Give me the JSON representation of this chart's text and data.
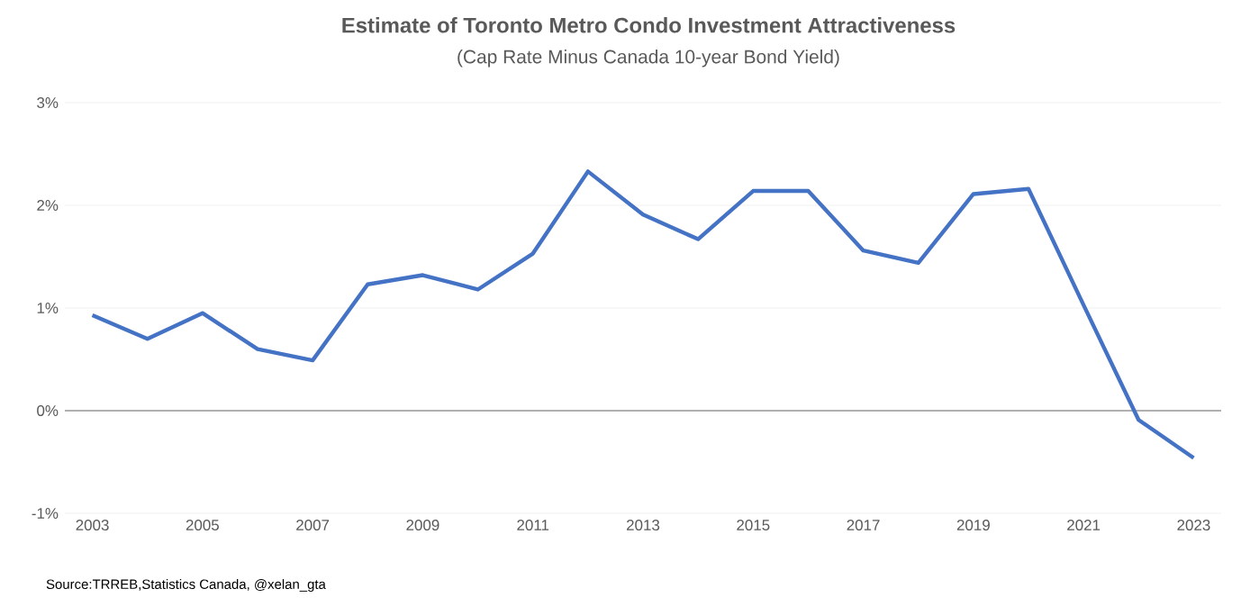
{
  "chart_data": {
    "type": "line",
    "title": "Estimate of Toronto Metro Condo Investment Attractiveness",
    "subtitle": "(Cap Rate Minus Canada 10-year Bond Yield)",
    "x": [
      2003,
      2004,
      2005,
      2006,
      2007,
      2008,
      2009,
      2010,
      2011,
      2012,
      2013,
      2014,
      2015,
      2016,
      2017,
      2018,
      2019,
      2020,
      2021,
      2022,
      2023
    ],
    "series": [
      {
        "color": "#4472c4",
        "values": [
          0.93,
          0.7,
          0.95,
          0.6,
          0.49,
          1.23,
          1.32,
          1.18,
          1.53,
          2.33,
          1.91,
          1.67,
          2.14,
          2.14,
          1.56,
          1.44,
          2.11,
          2.16,
          1.03,
          -0.09,
          -0.46
        ]
      }
    ],
    "xlim": [
      2002.5,
      2023.5
    ],
    "xticks": [
      2003,
      2005,
      2007,
      2009,
      2011,
      2013,
      2015,
      2017,
      2019,
      2021,
      2023
    ],
    "ylim": [
      -1,
      3
    ],
    "yticks": [
      {
        "value": -1,
        "label": "-1%"
      },
      {
        "value": 0,
        "label": "0%"
      },
      {
        "value": 1,
        "label": "1%"
      },
      {
        "value": 2,
        "label": "2%"
      },
      {
        "value": 3,
        "label": "3%"
      }
    ],
    "grid": "y",
    "marker": "none",
    "line_style": "solid",
    "annotations": [
      "Source:TRREB,Statistics Canada, @xelan_gta"
    ]
  }
}
